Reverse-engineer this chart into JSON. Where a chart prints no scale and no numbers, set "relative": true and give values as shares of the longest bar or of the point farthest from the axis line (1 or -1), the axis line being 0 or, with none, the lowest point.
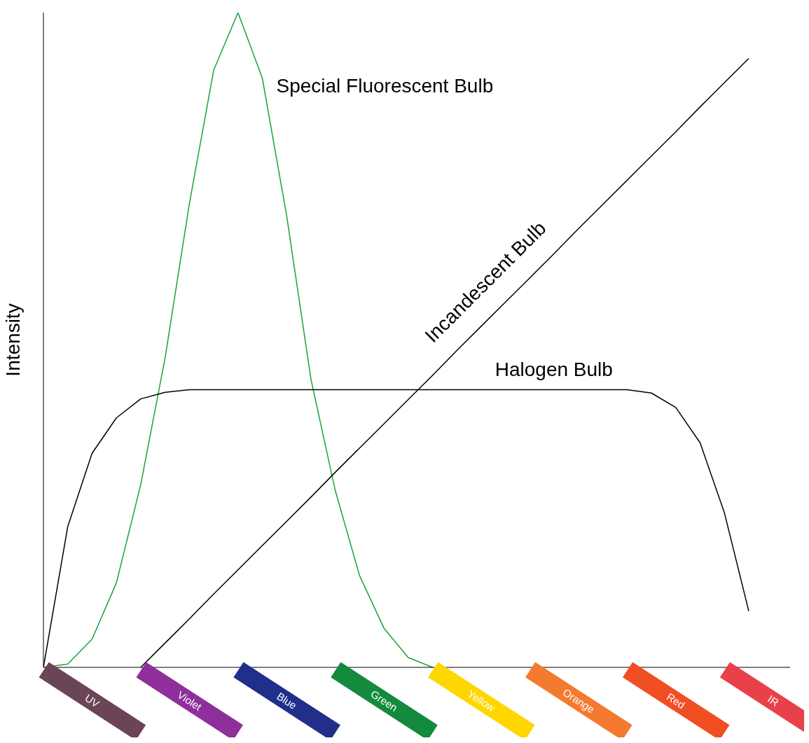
{
  "chart_data": {
    "type": "line",
    "ylabel": "Intensity",
    "relative": true,
    "legend": false,
    "grid": false,
    "marker": "none",
    "line_style": "solid",
    "categories": [
      null,
      null,
      "UV",
      null,
      null,
      null,
      "Violet",
      null,
      null,
      null,
      "Blue",
      null,
      null,
      null,
      "Green",
      null,
      null,
      null,
      "Yellow",
      null,
      null,
      null,
      "Orange",
      null,
      null,
      null,
      "Red",
      null,
      null,
      null,
      "IR"
    ],
    "series": [
      {
        "name": "Special Fluorescent Bulb",
        "color": "#1aa33a",
        "values": [
          0,
          0.005,
          0.043,
          0.129,
          0.279,
          0.472,
          0.708,
          0.912,
          1,
          0.9,
          0.69,
          0.44,
          0.27,
          0.14,
          0.06,
          0.015,
          0,
          null,
          null,
          null,
          null,
          null,
          null,
          null,
          null,
          null,
          null,
          null,
          null,
          null,
          null
        ]
      },
      {
        "name": "Incandescent Bulb",
        "color": "#000000",
        "values": [
          null,
          null,
          null,
          null,
          0,
          0.037,
          0.074,
          0.112,
          0.149,
          0.186,
          0.223,
          0.26,
          0.298,
          0.335,
          0.372,
          0.409,
          0.446,
          0.484,
          0.521,
          0.558,
          0.595,
          0.632,
          0.67,
          0.707,
          0.744,
          0.781,
          0.818,
          0.856,
          0.893,
          0.93,
          null
        ]
      },
      {
        "name": "Halogen Bulb",
        "color": "#000000",
        "values": [
          0,
          0.215,
          0.327,
          0.381,
          0.41,
          0.42,
          0.424,
          0.424,
          0.424,
          0.424,
          0.424,
          0.424,
          0.424,
          0.424,
          0.424,
          0.424,
          0.424,
          0.424,
          0.424,
          0.424,
          0.424,
          0.424,
          0.424,
          0.424,
          0.424,
          0.419,
          0.397,
          0.343,
          0.236,
          0.086,
          null
        ]
      }
    ]
  }
}
